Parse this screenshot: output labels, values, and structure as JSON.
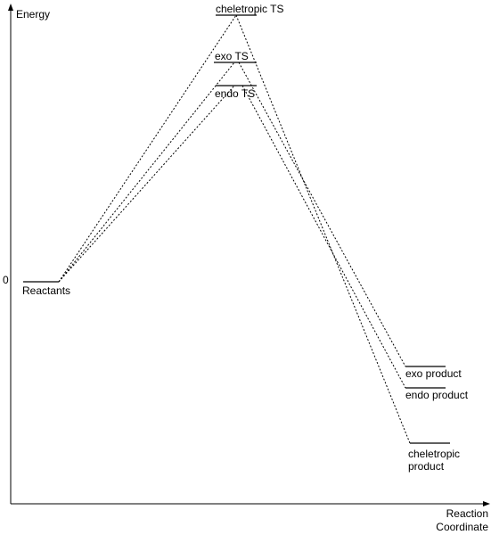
{
  "axes": {
    "y_label": "Energy",
    "y_zero": "0",
    "x_label": [
      "Reaction",
      "Coordinate"
    ]
  },
  "levels": {
    "reactants": {
      "label": "Reactants"
    },
    "cheletropic_ts": {
      "label": "cheletropic TS"
    },
    "exo_ts": {
      "label": "exo TS"
    },
    "endo_ts": {
      "label": "endo TS"
    },
    "exo_product": {
      "label": "exo product"
    },
    "endo_product": {
      "label": "endo product"
    },
    "cheletropic_product": {
      "label": [
        "cheletropic",
        "product"
      ]
    }
  }
}
